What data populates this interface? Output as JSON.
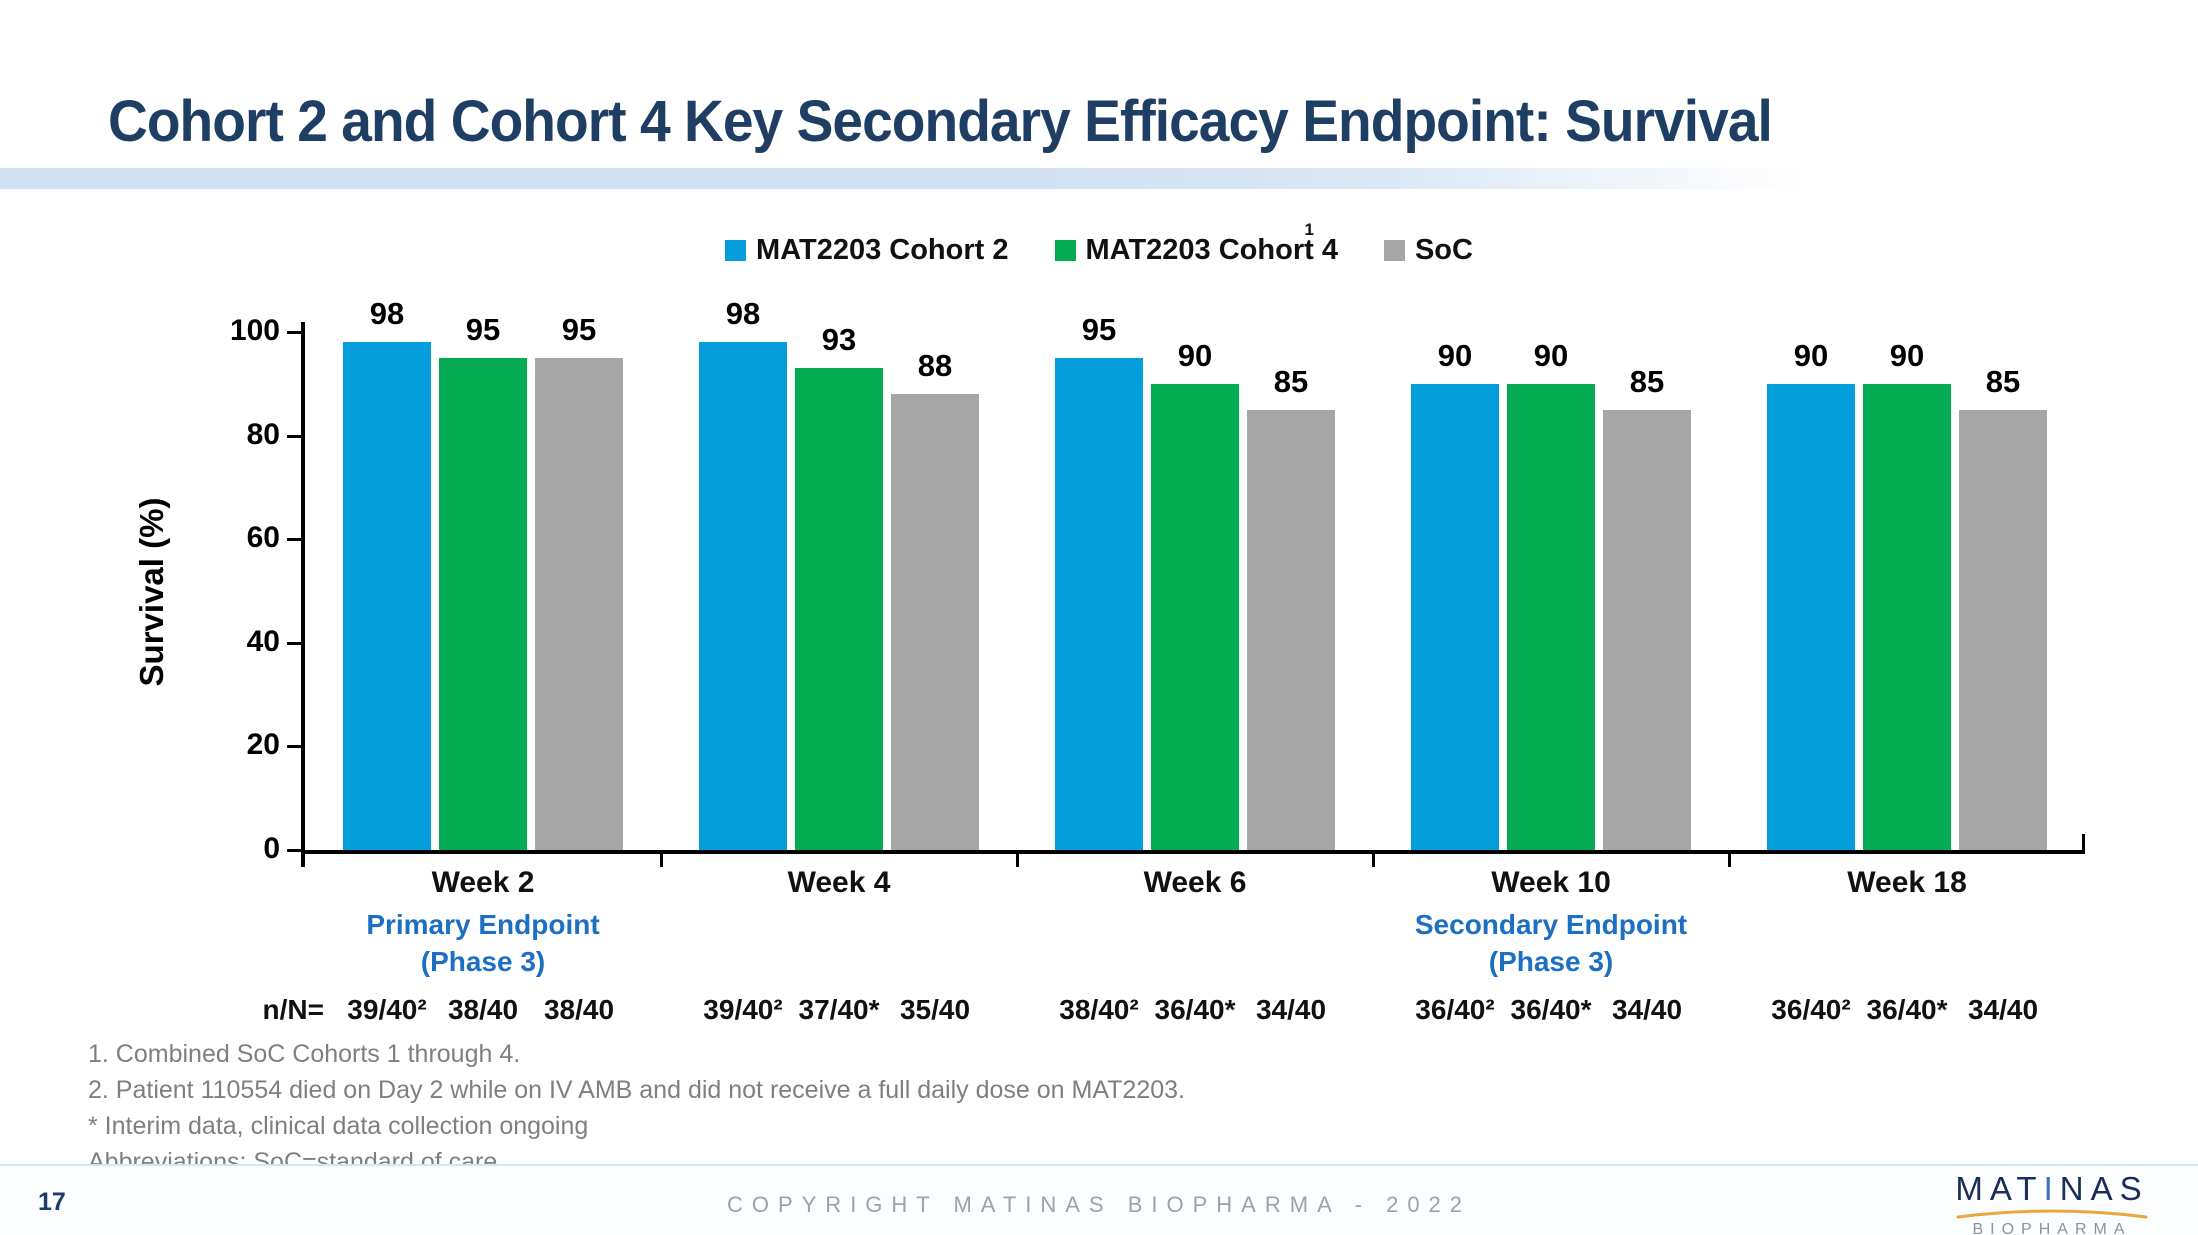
{
  "slide": {
    "title": "Cohort 2 and Cohort 4 Key Secondary Efficacy Endpoint: Survival",
    "page_number": "17",
    "copyright": "COPYRIGHT MATINAS BIOPHARMA - 2022",
    "logo": {
      "part1": "MAT",
      "part2": "I",
      "part3": "NAS",
      "sub": "BIOPHARMA"
    }
  },
  "legend": {
    "items": [
      {
        "label": "MAT2203 Cohort 2",
        "color": "#049EDB",
        "superscript": ""
      },
      {
        "label": "MAT2203 Cohort 4",
        "color": "#04AB53",
        "superscript": "1"
      },
      {
        "label": "SoC",
        "color": "#A6A6A6",
        "superscript": ""
      }
    ]
  },
  "chart_data": {
    "type": "bar",
    "title": "",
    "xlabel": "",
    "ylabel": "Survival (%)",
    "ylim": [
      0,
      100
    ],
    "yticks": [
      0,
      20,
      40,
      60,
      80,
      100
    ],
    "grid": false,
    "legend_position": "top",
    "categories": [
      "Week 2",
      "Week 4",
      "Week 6",
      "Week 10",
      "Week 18"
    ],
    "series": [
      {
        "name": "MAT2203 Cohort 2",
        "color": "#049EDB",
        "values": [
          98,
          98,
          95,
          90,
          90
        ],
        "n_over_N": [
          "39/40²",
          "39/40²",
          "38/40²",
          "36/40²",
          "36/40²"
        ]
      },
      {
        "name": "MAT2203 Cohort 4",
        "color": "#04AB53",
        "values": [
          95,
          93,
          90,
          90,
          90
        ],
        "n_over_N": [
          "38/40",
          "37/40*",
          "36/40*",
          "36/40*",
          "36/40*"
        ]
      },
      {
        "name": "SoC",
        "color": "#A6A6A6",
        "values": [
          95,
          88,
          85,
          85,
          85
        ],
        "n_over_N": [
          "38/40",
          "35/40",
          "34/40",
          "34/40",
          "34/40"
        ]
      }
    ],
    "n_row_label": "n/N=",
    "annotations": [
      {
        "category_index": 0,
        "lines": [
          "Primary Endpoint",
          "(Phase 3)"
        ]
      },
      {
        "category_index": 3,
        "lines": [
          "Secondary Endpoint",
          "(Phase 3)"
        ]
      }
    ]
  },
  "footnotes": {
    "lines": [
      "1. Combined SoC Cohorts 1 through 4.",
      "2. Patient 110554 died on Day 2 while on IV AMB and did not receive a full daily dose on MAT2203.",
      "* Interim data, clinical data collection ongoing",
      "Abbreviations: SoC=standard of care."
    ]
  }
}
